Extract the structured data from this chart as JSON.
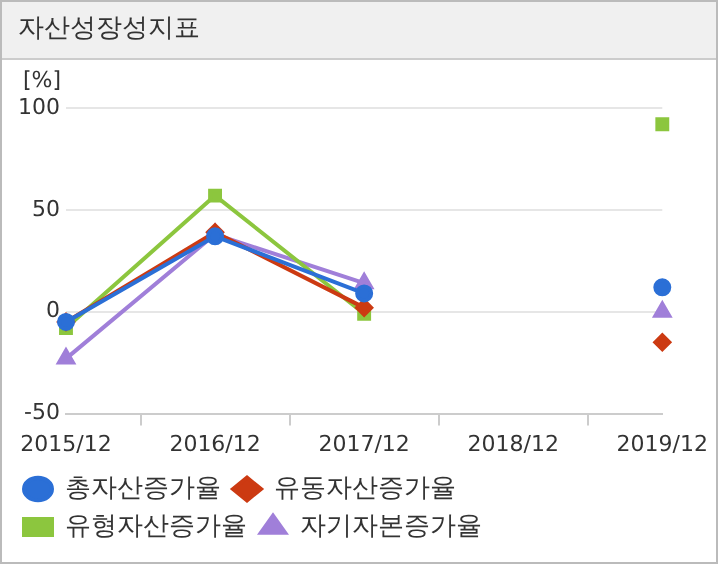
{
  "chart_data": {
    "type": "line",
    "title": "자산성장성지표",
    "ylabel": "[%]",
    "categories": [
      "2015/12",
      "2016/12",
      "2017/12",
      "2018/12",
      "2019/12"
    ],
    "series": [
      {
        "name": "총자산증가율",
        "color": "#2b6fd6",
        "marker": "circle",
        "values": [
          -5,
          37,
          9,
          null,
          12
        ]
      },
      {
        "name": "유동자산증가율",
        "color": "#cc3a12",
        "marker": "diamond",
        "values": [
          -5,
          39,
          2,
          null,
          -15
        ]
      },
      {
        "name": "유형자산증가율",
        "color": "#8cc63e",
        "marker": "square",
        "values": [
          -8,
          57,
          -1,
          null,
          92
        ]
      },
      {
        "name": "자기자본증가율",
        "color": "#a07fd9",
        "marker": "triangle",
        "values": [
          -23,
          38,
          14,
          null,
          0
        ]
      }
    ],
    "ylim": [
      -50,
      100
    ],
    "yticks": [
      -50,
      0,
      50,
      100
    ],
    "grid": "y",
    "legend": "bottom",
    "line_style": "solid"
  }
}
